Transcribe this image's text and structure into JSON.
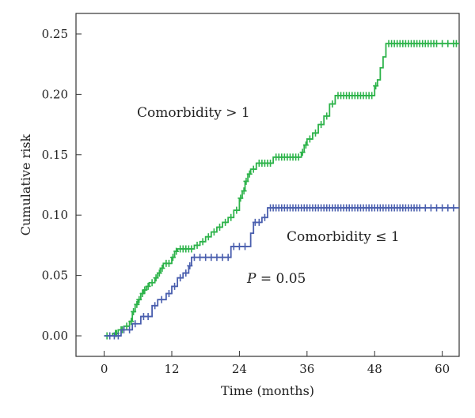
{
  "chart_data": {
    "type": "line",
    "subtype": "step",
    "xlabel": "Time (months)",
    "ylabel": "Cumulative risk",
    "xlim": [
      -5,
      63
    ],
    "ylim": [
      -0.017,
      0.267
    ],
    "xticks": [
      0,
      12,
      24,
      36,
      48,
      60
    ],
    "xtick_labels": [
      "0",
      "12",
      "24",
      "36",
      "48",
      "60"
    ],
    "yticks": [
      0.0,
      0.05,
      0.1,
      0.15,
      0.2,
      0.25
    ],
    "ytick_labels": [
      "0.00",
      "0.05",
      "0.10",
      "0.15",
      "0.20",
      "0.25"
    ],
    "grid": false,
    "annotations": {
      "green_label": "Comorbidity > 1",
      "blue_label": "Comorbidity ≤ 1",
      "p_symbol": "P",
      "p_value": " = 0.05"
    },
    "series": [
      {
        "name": "Comorbidity > 1",
        "color": "#2db34a",
        "steps": [
          [
            0,
            0
          ],
          [
            1.5,
            0.002
          ],
          [
            2.5,
            0.005
          ],
          [
            3.5,
            0.008
          ],
          [
            4.5,
            0.012
          ],
          [
            5,
            0.02
          ],
          [
            5.5,
            0.026
          ],
          [
            6,
            0.03
          ],
          [
            6.5,
            0.035
          ],
          [
            7,
            0.038
          ],
          [
            7.5,
            0.041
          ],
          [
            8,
            0.044
          ],
          [
            9,
            0.048
          ],
          [
            9.5,
            0.052
          ],
          [
            10,
            0.056
          ],
          [
            10.5,
            0.06
          ],
          [
            12,
            0.065
          ],
          [
            12.5,
            0.07
          ],
          [
            13,
            0.072
          ],
          [
            16,
            0.075
          ],
          [
            17,
            0.078
          ],
          [
            18,
            0.082
          ],
          [
            19,
            0.086
          ],
          [
            20,
            0.09
          ],
          [
            21,
            0.094
          ],
          [
            22,
            0.098
          ],
          [
            23,
            0.104
          ],
          [
            24,
            0.114
          ],
          [
            24.5,
            0.12
          ],
          [
            25,
            0.128
          ],
          [
            25.5,
            0.134
          ],
          [
            26,
            0.138
          ],
          [
            27,
            0.143
          ],
          [
            30,
            0.148
          ],
          [
            35,
            0.152
          ],
          [
            35.5,
            0.158
          ],
          [
            36,
            0.163
          ],
          [
            37,
            0.168
          ],
          [
            38,
            0.175
          ],
          [
            39,
            0.182
          ],
          [
            40,
            0.192
          ],
          [
            41,
            0.199
          ],
          [
            48,
            0.207
          ],
          [
            48.5,
            0.212
          ],
          [
            49,
            0.222
          ],
          [
            49.5,
            0.231
          ],
          [
            50,
            0.242
          ],
          [
            63,
            0.242
          ]
        ],
        "censor_x": [
          0.5,
          1,
          2,
          2.2,
          3,
          3.2,
          4,
          4.8,
          5.2,
          5.8,
          6.2,
          6.8,
          7.2,
          7.8,
          8.5,
          9.2,
          9.8,
          10.3,
          11,
          11.5,
          12.2,
          12.8,
          13.5,
          14,
          14.5,
          15,
          15.5,
          16.5,
          17.5,
          18.5,
          19.5,
          20.5,
          21.5,
          22.5,
          23.5,
          24.2,
          24.8,
          25.2,
          25.8,
          26.5,
          27.5,
          28,
          28.5,
          29,
          29.5,
          30.5,
          31,
          31.5,
          32,
          32.5,
          33,
          33.5,
          34,
          34.5,
          35.2,
          35.8,
          36.5,
          37.5,
          38.5,
          39.5,
          40.5,
          41.5,
          42,
          42.5,
          43,
          43.5,
          44,
          44.5,
          45,
          45.5,
          46,
          46.5,
          47,
          47.5,
          48.2,
          50.5,
          51,
          51.5,
          52,
          52.5,
          53,
          53.5,
          54,
          54.5,
          55,
          55.5,
          56,
          56.5,
          57,
          57.5,
          58,
          58.5,
          59,
          60,
          61,
          62,
          62.5
        ]
      },
      {
        "name": "Comorbidity ≤ 1",
        "color": "#4a5fae",
        "steps": [
          [
            0,
            0
          ],
          [
            3,
            0.005
          ],
          [
            5,
            0.01
          ],
          [
            6.5,
            0.016
          ],
          [
            8.5,
            0.025
          ],
          [
            9.5,
            0.03
          ],
          [
            11,
            0.035
          ],
          [
            12,
            0.041
          ],
          [
            13,
            0.048
          ],
          [
            14,
            0.052
          ],
          [
            15,
            0.058
          ],
          [
            15.5,
            0.065
          ],
          [
            22.5,
            0.074
          ],
          [
            26,
            0.085
          ],
          [
            26.5,
            0.094
          ],
          [
            28,
            0.098
          ],
          [
            29,
            0.106
          ],
          [
            63,
            0.106
          ]
        ],
        "censor_x": [
          1,
          1.8,
          2.5,
          3.5,
          4.5,
          5.5,
          7,
          7.8,
          9,
          10.2,
          11.5,
          12.5,
          13.5,
          14.5,
          15.2,
          16,
          17,
          18,
          19,
          20,
          21,
          22,
          23,
          24,
          25,
          26.8,
          27.5,
          28.5,
          29.5,
          30,
          30.5,
          31,
          31.5,
          32,
          32.5,
          33,
          33.5,
          34,
          34.5,
          35,
          35.5,
          36,
          36.5,
          37,
          37.5,
          38,
          38.5,
          39,
          39.5,
          40,
          40.5,
          41,
          41.5,
          42,
          42.5,
          43,
          43.5,
          44,
          44.5,
          45,
          45.5,
          46,
          46.5,
          47,
          47.5,
          48,
          48.5,
          49,
          49.5,
          50,
          50.5,
          51,
          51.5,
          52,
          52.5,
          53,
          53.5,
          54,
          54.5,
          55,
          55.5,
          56,
          57,
          58,
          59,
          60,
          61,
          62
        ]
      }
    ]
  }
}
